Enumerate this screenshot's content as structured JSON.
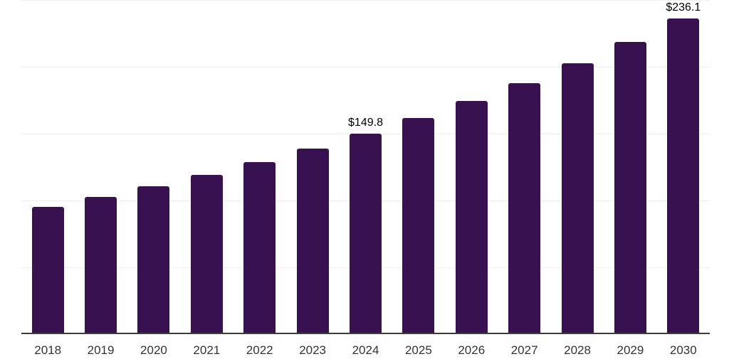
{
  "chart_data": {
    "type": "bar",
    "title": "",
    "xlabel": "",
    "ylabel": "",
    "categories": [
      "2018",
      "2019",
      "2020",
      "2021",
      "2022",
      "2023",
      "2024",
      "2025",
      "2026",
      "2027",
      "2028",
      "2029",
      "2030"
    ],
    "values": [
      95.1,
      102.6,
      110.7,
      119.4,
      128.8,
      138.9,
      149.8,
      161.6,
      174.3,
      188.0,
      202.8,
      218.8,
      236.1
    ],
    "data_labels": {
      "2024": "$149.8",
      "2030": "$236.1"
    },
    "ylim": [
      0,
      250
    ],
    "gridline_step": 50,
    "grid": "horizontal",
    "y_axis_labels_visible": false,
    "legend_position": "none",
    "colors": {
      "bar": "#381150",
      "axis_line": "#3d3d3d",
      "tick_label": "#333333",
      "data_label": "#000000",
      "gridline": "#f0f0f0",
      "background": "#ffffff"
    }
  }
}
